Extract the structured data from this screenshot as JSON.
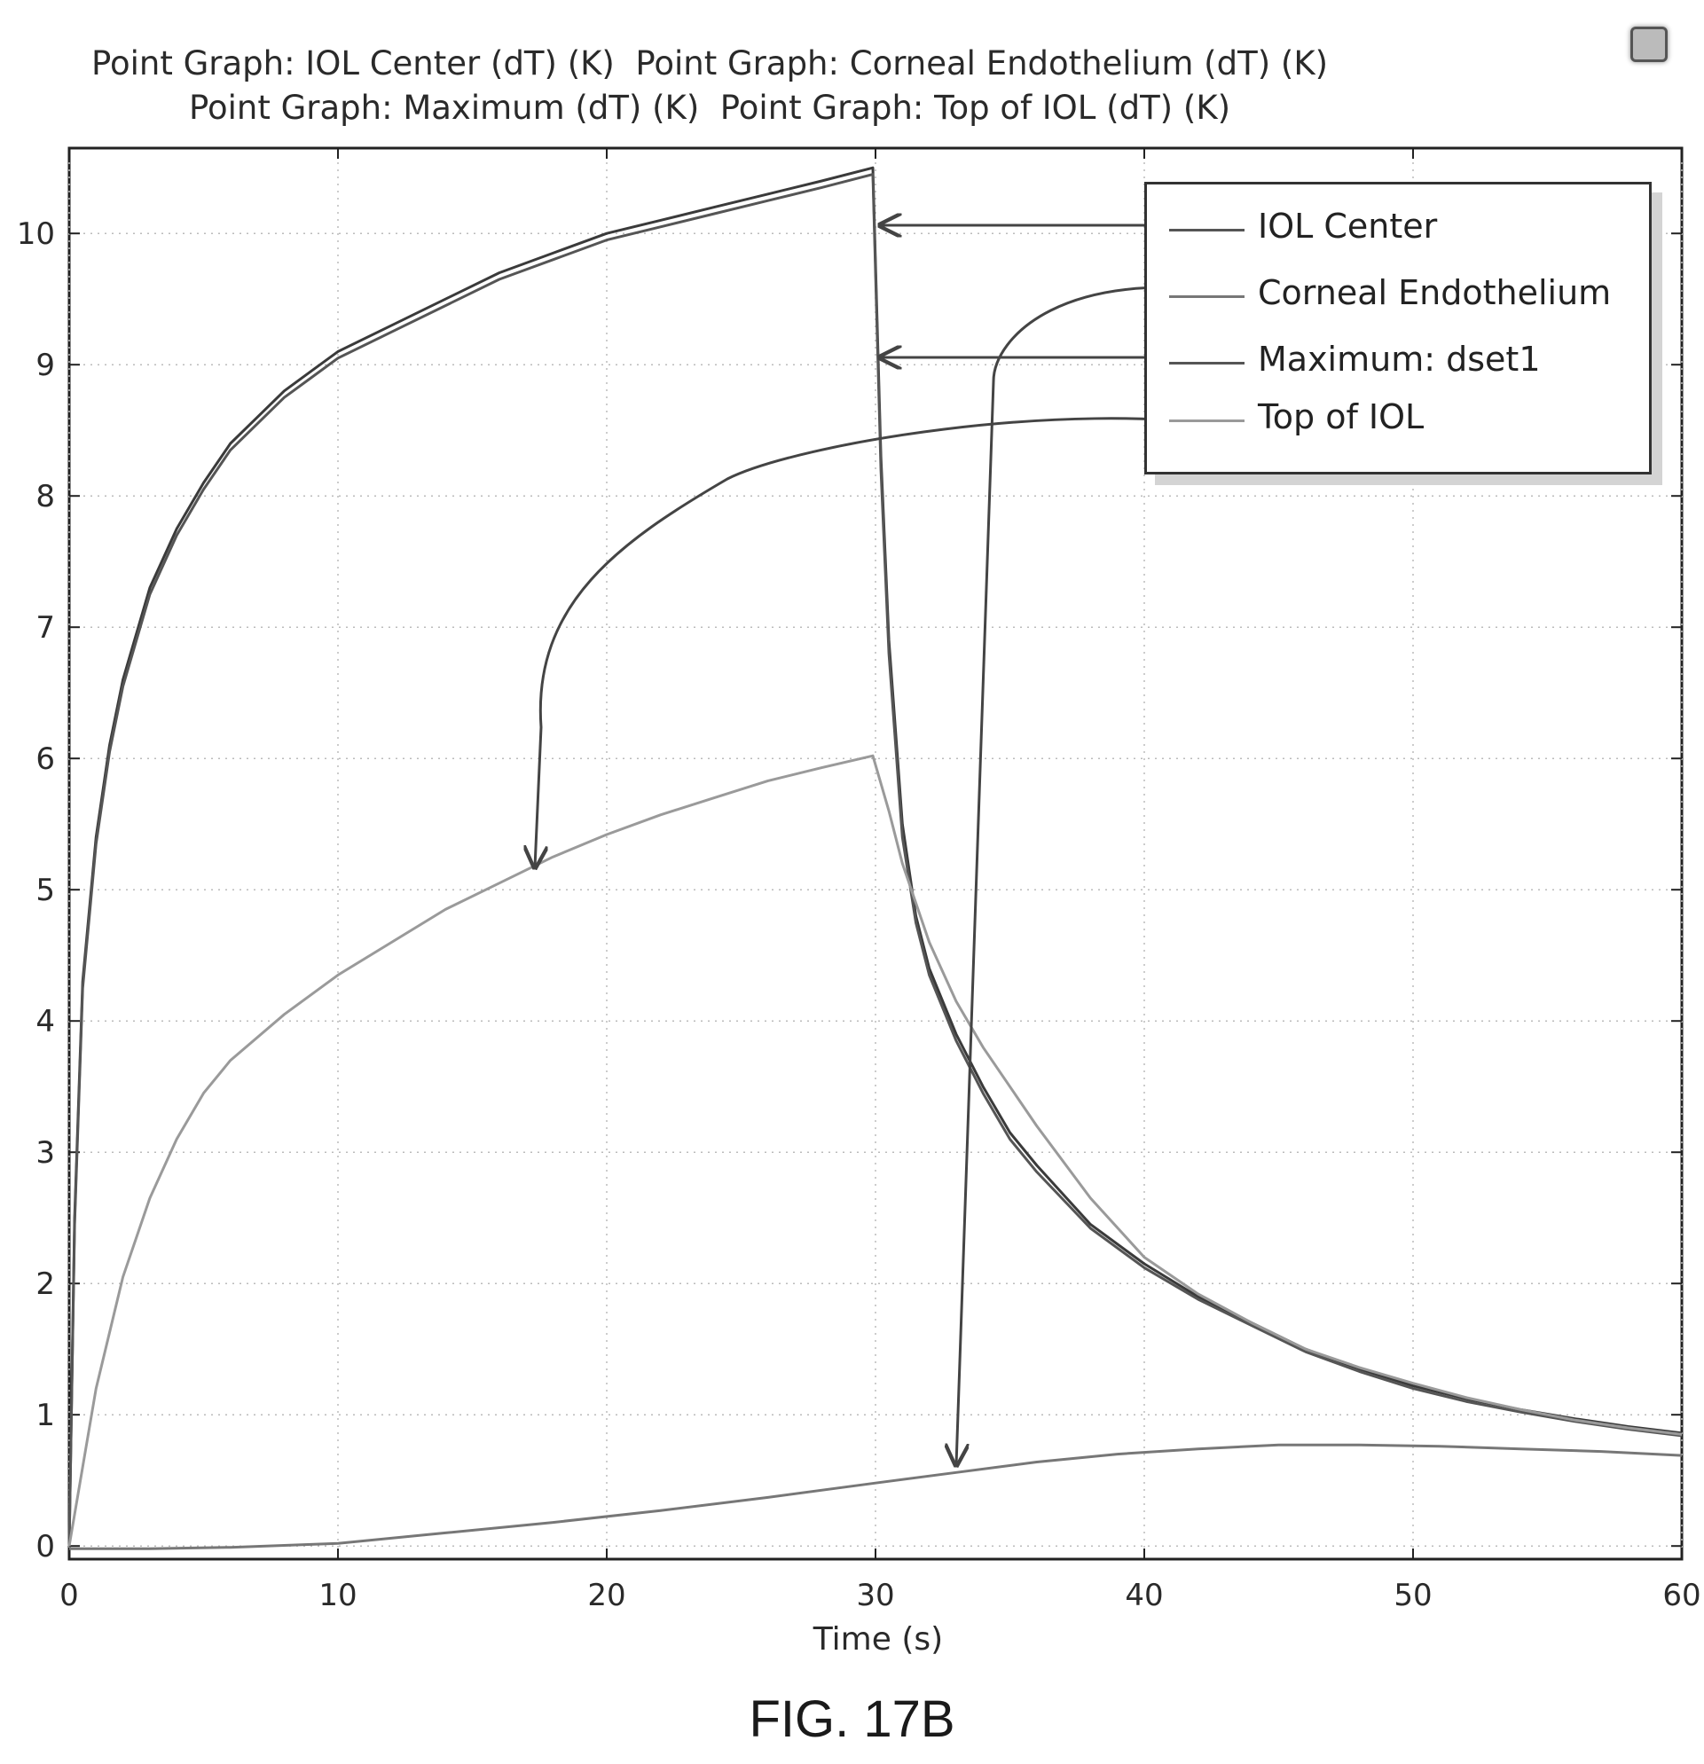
{
  "chart_data": {
    "type": "line",
    "title_lines": [
      "Point Graph: IOL Center (dT) (K)  Point Graph: Corneal Endothelium (dT) (K)",
      "Point Graph: Maximum (dT) (K)  Point Graph: Top of IOL (dT) (K)"
    ],
    "xlabel": "Time (s)",
    "ylabel": "",
    "xlim": [
      0,
      60
    ],
    "ylim": [
      -0.1,
      10.65
    ],
    "xticks": [
      0,
      10,
      20,
      30,
      40,
      50,
      60
    ],
    "yticks": [
      0,
      1,
      2,
      3,
      4,
      5,
      6,
      7,
      8,
      9,
      10
    ],
    "grid": true,
    "legend_position": "top-right",
    "series": [
      {
        "name": "IOL Center",
        "color": "#3a3a3a",
        "x": [
          0,
          0.2,
          0.5,
          1,
          1.5,
          2,
          3,
          4,
          5,
          6,
          7,
          8,
          9,
          10,
          12,
          14,
          16,
          18,
          20,
          22,
          24,
          26,
          28,
          29.9,
          30.2,
          30.5,
          31,
          31.5,
          32,
          33,
          34,
          35,
          36,
          38,
          40,
          42,
          44,
          46,
          48,
          50,
          52,
          54,
          56,
          58,
          60
        ],
        "values": [
          0,
          2.5,
          4.3,
          5.4,
          6.1,
          6.6,
          7.3,
          7.75,
          8.1,
          8.4,
          8.6,
          8.8,
          8.95,
          9.1,
          9.3,
          9.5,
          9.7,
          9.85,
          10.0,
          10.1,
          10.2,
          10.3,
          10.4,
          10.5,
          8.3,
          6.9,
          5.5,
          4.8,
          4.4,
          3.9,
          3.5,
          3.15,
          2.9,
          2.45,
          2.15,
          1.9,
          1.7,
          1.5,
          1.35,
          1.22,
          1.12,
          1.04,
          0.97,
          0.91,
          0.86
        ]
      },
      {
        "name": "Corneal Endothelium",
        "color": "#777777",
        "x": [
          0,
          3,
          6,
          10,
          14,
          18,
          22,
          26,
          30,
          33,
          36,
          39,
          42,
          45,
          48,
          51,
          54,
          57,
          60
        ],
        "values": [
          -0.02,
          -0.02,
          -0.01,
          0.02,
          0.1,
          0.18,
          0.27,
          0.37,
          0.48,
          0.56,
          0.64,
          0.7,
          0.74,
          0.77,
          0.77,
          0.76,
          0.74,
          0.72,
          0.69
        ]
      },
      {
        "name": "Maximum: dset1",
        "color": "#555555",
        "x": [
          0,
          0.2,
          0.5,
          1,
          1.5,
          2,
          3,
          4,
          5,
          6,
          7,
          8,
          9,
          10,
          12,
          14,
          16,
          18,
          20,
          22,
          24,
          26,
          28,
          29.9,
          30.2,
          30.5,
          31,
          31.5,
          32,
          33,
          34,
          35,
          36,
          38,
          40,
          42,
          44,
          46,
          48,
          50,
          52,
          54,
          56,
          58,
          60
        ],
        "values": [
          0,
          2.45,
          4.25,
          5.35,
          6.05,
          6.55,
          7.25,
          7.7,
          8.05,
          8.35,
          8.55,
          8.75,
          8.9,
          9.05,
          9.25,
          9.45,
          9.65,
          9.8,
          9.95,
          10.05,
          10.15,
          10.25,
          10.35,
          10.45,
          8.2,
          6.8,
          5.4,
          4.75,
          4.35,
          3.85,
          3.45,
          3.1,
          2.85,
          2.42,
          2.12,
          1.88,
          1.68,
          1.48,
          1.33,
          1.2,
          1.1,
          1.02,
          0.95,
          0.89,
          0.84
        ]
      },
      {
        "name": "Top of IOL",
        "color": "#9a9a9a",
        "x": [
          0,
          1,
          2,
          3,
          4,
          5,
          6,
          8,
          10,
          12,
          14,
          16,
          18,
          20,
          22,
          24,
          26,
          28,
          29.9,
          30.5,
          31,
          32,
          33,
          34,
          35,
          36,
          38,
          40,
          42,
          44,
          46,
          48,
          50,
          52,
          54,
          56,
          58,
          60
        ],
        "values": [
          0,
          1.2,
          2.05,
          2.65,
          3.1,
          3.45,
          3.7,
          4.05,
          4.35,
          4.6,
          4.85,
          5.05,
          5.25,
          5.42,
          5.57,
          5.7,
          5.83,
          5.93,
          6.02,
          5.6,
          5.2,
          4.6,
          4.15,
          3.8,
          3.5,
          3.2,
          2.65,
          2.2,
          1.92,
          1.7,
          1.5,
          1.36,
          1.24,
          1.13,
          1.04,
          0.96,
          0.9,
          0.85
        ]
      }
    ],
    "legend": [
      "IOL Center",
      "Corneal Endothelium",
      "Maximum: dset1",
      "Top of IOL"
    ]
  },
  "caption": "FIG. 17B"
}
